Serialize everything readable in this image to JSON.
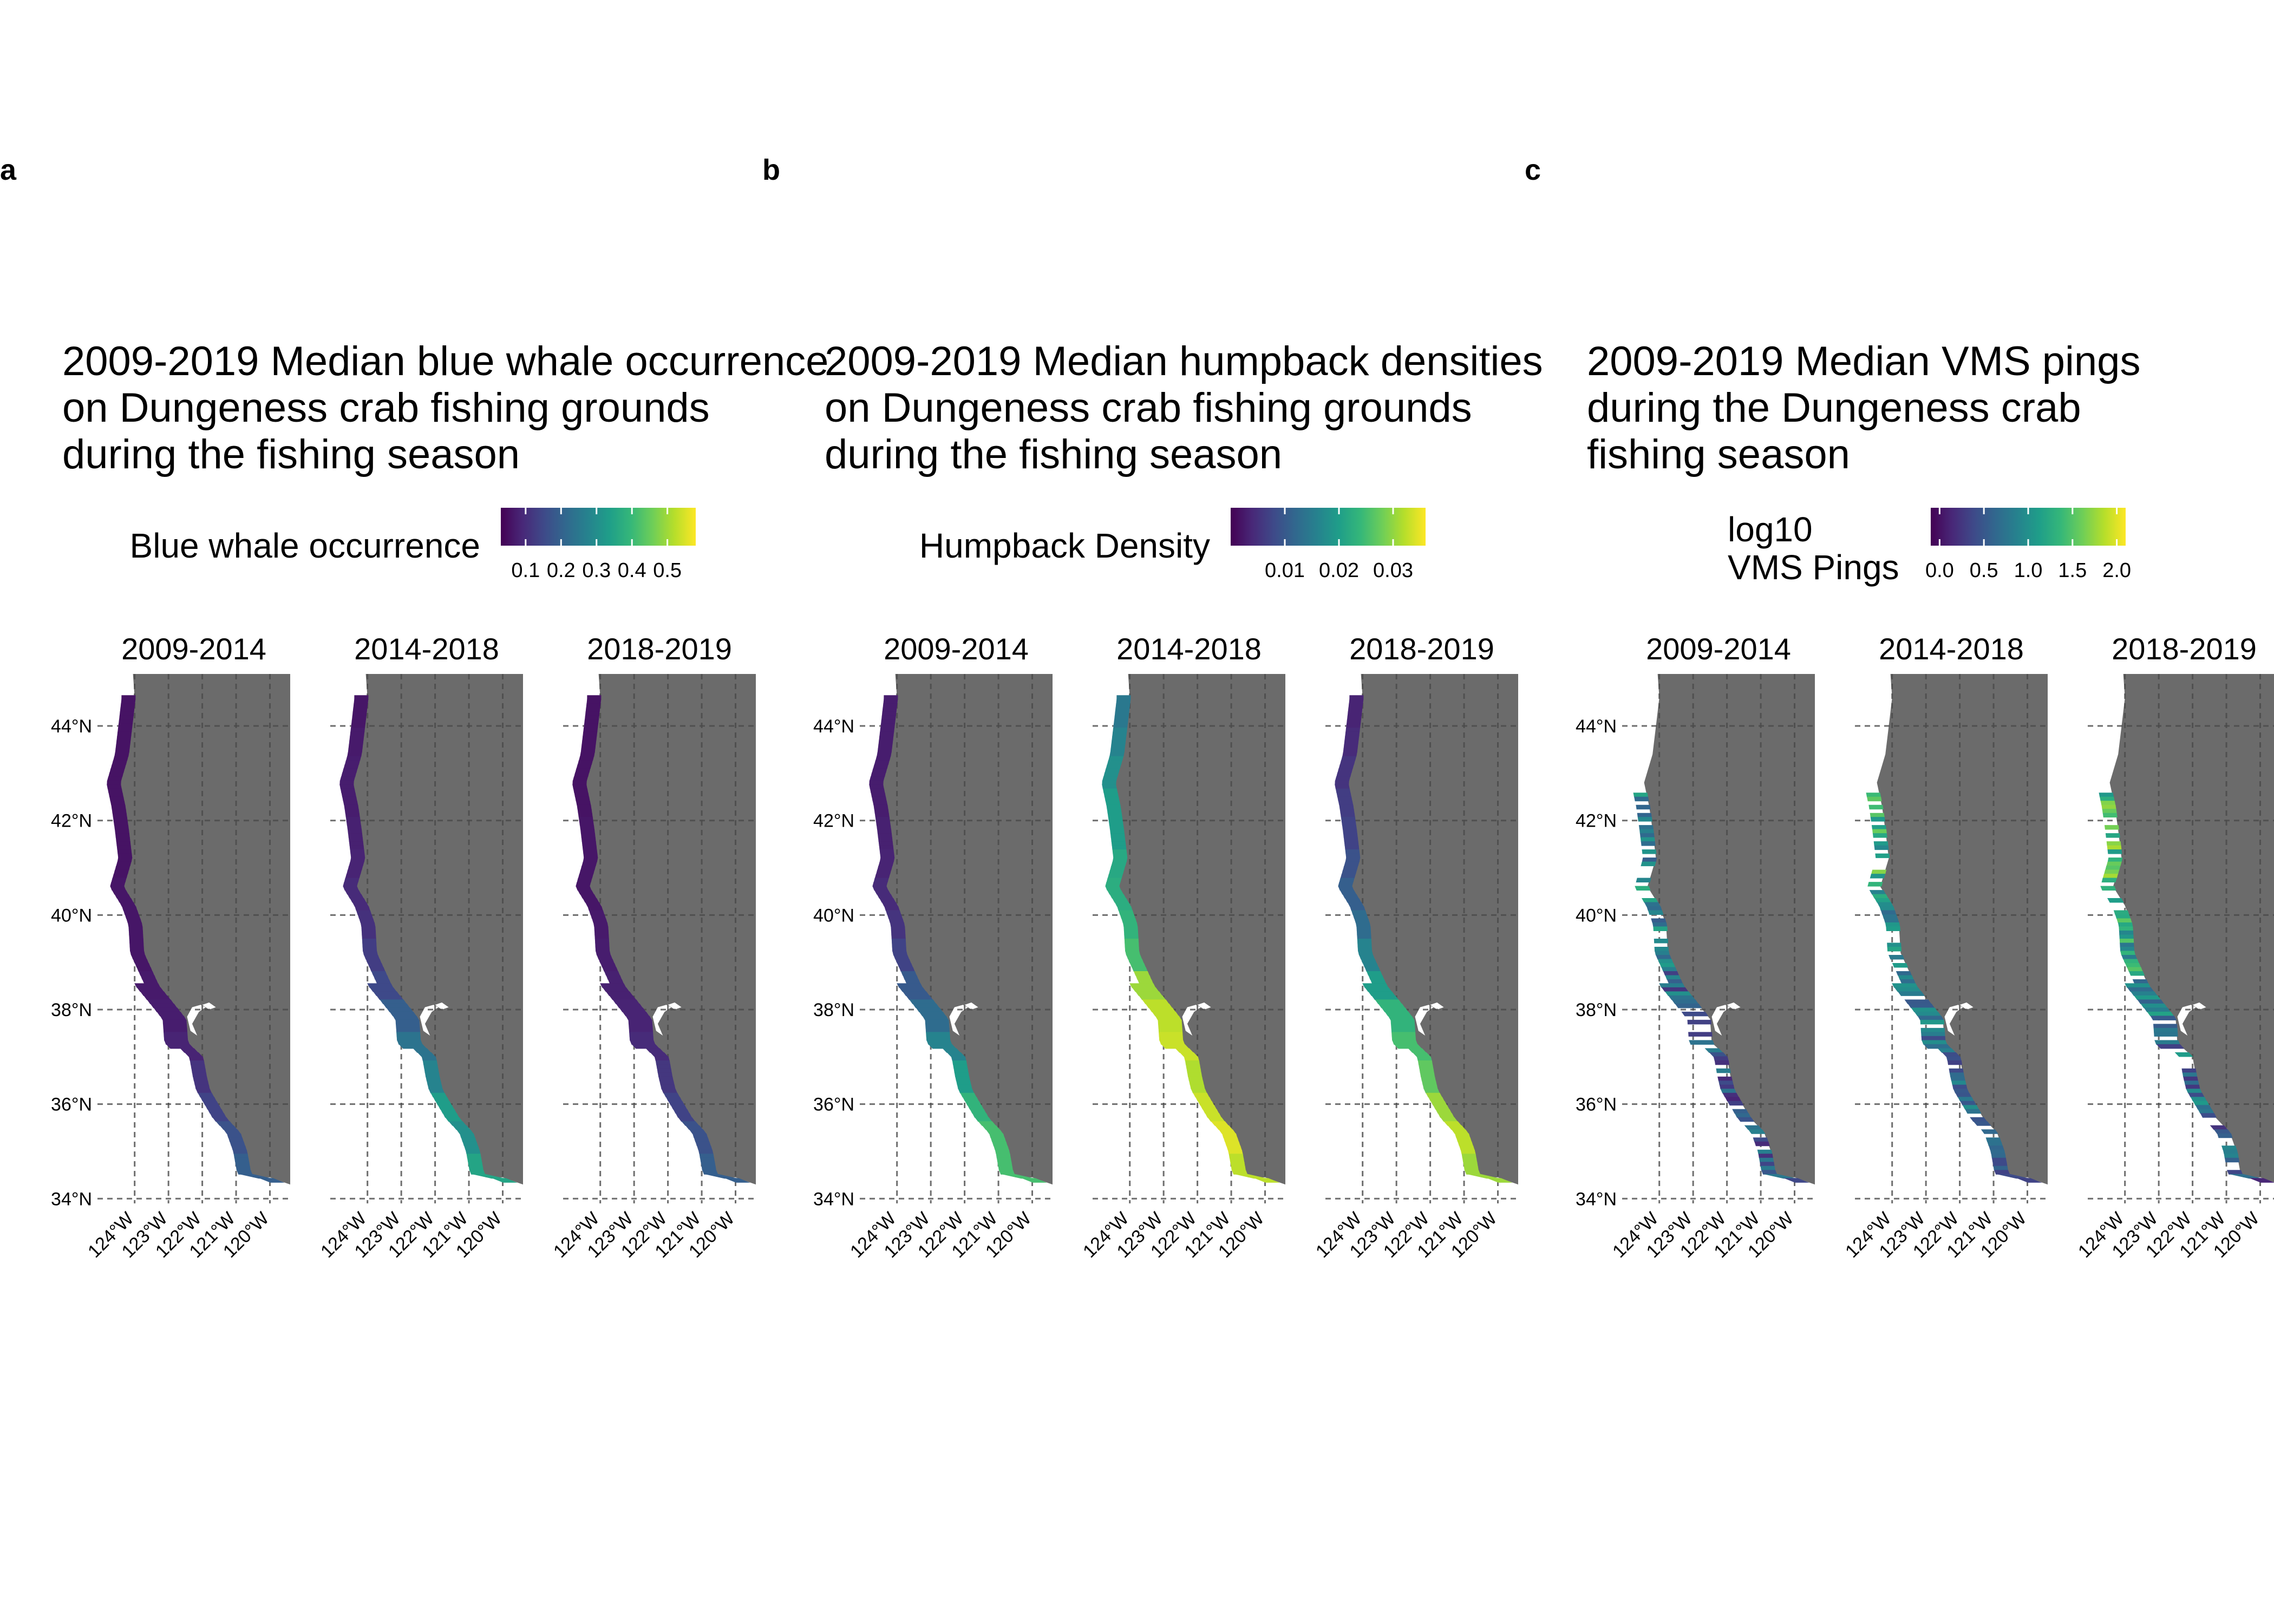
{
  "figure": {
    "panels": [
      {
        "letter": "a",
        "title_lines": [
          "2009-2019 Median blue whale occurrence",
          "on Dungeness crab fishing grounds",
          "during the fishing season"
        ],
        "legend_title_lines": [
          "Blue whale occurrence"
        ],
        "legend_ticks": [
          {
            "label": "0.1",
            "value": 0.1
          },
          {
            "label": "0.2",
            "value": 0.2
          },
          {
            "label": "0.3",
            "value": 0.3
          },
          {
            "label": "0.4",
            "value": 0.4
          },
          {
            "label": "0.5",
            "value": 0.5
          }
        ],
        "legend_range": [
          0.03,
          0.58
        ],
        "facets": [
          {
            "label": "2009-2014",
            "color_profile": [
              0.05,
              0.05,
              0.05,
              0.05,
              0.05,
              0.05,
              0.06,
              0.06,
              0.06,
              0.07,
              0.08,
              0.1,
              0.15,
              0.2,
              0.25,
              0.3
            ],
            "pattern": "continuous"
          },
          {
            "label": "2014-2018",
            "color_profile": [
              0.06,
              0.07,
              0.08,
              0.08,
              0.09,
              0.1,
              0.12,
              0.14,
              0.18,
              0.22,
              0.3,
              0.38,
              0.45,
              0.55,
              0.5,
              0.58
            ],
            "pattern": "continuous"
          },
          {
            "label": "2018-2019",
            "color_profile": [
              0.05,
              0.05,
              0.05,
              0.05,
              0.06,
              0.06,
              0.06,
              0.07,
              0.08,
              0.09,
              0.1,
              0.12,
              0.16,
              0.2,
              0.25,
              0.3
            ],
            "pattern": "continuous"
          }
        ]
      },
      {
        "letter": "b",
        "title_lines": [
          "2009-2019 Median humpback densities",
          "on Dungeness crab fishing grounds",
          "during the fishing season"
        ],
        "legend_title_lines": [
          "Humpback Density"
        ],
        "legend_ticks": [
          {
            "label": "0.01",
            "value": 0.01
          },
          {
            "label": "0.02",
            "value": 0.02
          },
          {
            "label": "0.03",
            "value": 0.03
          }
        ],
        "legend_range": [
          0.0,
          0.036
        ],
        "facets": [
          {
            "label": "2009-2014",
            "color_profile": [
              0.08,
              0.08,
              0.08,
              0.08,
              0.09,
              0.1,
              0.12,
              0.15,
              0.2,
              0.28,
              0.35,
              0.45,
              0.55,
              0.65,
              0.7,
              0.7
            ],
            "pattern": "continuous"
          },
          {
            "label": "2014-2018",
            "color_profile": [
              0.4,
              0.45,
              0.5,
              0.55,
              0.55,
              0.6,
              0.62,
              0.65,
              0.7,
              0.85,
              0.9,
              0.92,
              0.88,
              0.92,
              0.95,
              0.9
            ],
            "pattern": "continuous"
          },
          {
            "label": "2018-2019",
            "color_profile": [
              0.1,
              0.12,
              0.15,
              0.18,
              0.2,
              0.25,
              0.3,
              0.35,
              0.45,
              0.55,
              0.65,
              0.7,
              0.75,
              0.85,
              0.9,
              0.85
            ],
            "pattern": "continuous"
          }
        ]
      },
      {
        "letter": "c",
        "title_lines": [
          "2009-2019 Median VMS pings",
          "during the Dungeness crab",
          "fishing season"
        ],
        "legend_title_lines": [
          "log10",
          "VMS Pings"
        ],
        "legend_ticks": [
          {
            "label": "0.0",
            "value": 0.0
          },
          {
            "label": "0.5",
            "value": 0.5
          },
          {
            "label": "1.0",
            "value": 1.0
          },
          {
            "label": "1.5",
            "value": 1.5
          },
          {
            "label": "2.0",
            "value": 2.0
          }
        ],
        "legend_range": [
          -0.1,
          2.1
        ],
        "facets": [
          {
            "label": "2009-2014",
            "color_profile": [
              0.3,
              0.35,
              0.3,
              0.4,
              0.35,
              0.3,
              0.4,
              0.35,
              0.3,
              0.25,
              0.2,
              0.25,
              0.2,
              0.2,
              0.2,
              0.2
            ],
            "pattern": "sparse"
          },
          {
            "label": "2014-2018",
            "color_profile": [
              0.35,
              0.4,
              0.45,
              0.5,
              0.55,
              0.6,
              0.5,
              0.45,
              0.4,
              0.35,
              0.3,
              0.3,
              0.25,
              0.25,
              0.2,
              0.2
            ],
            "pattern": "sparse"
          },
          {
            "label": "2018-2019",
            "color_profile": [
              0.4,
              0.5,
              0.55,
              0.6,
              0.7,
              0.65,
              0.6,
              0.55,
              0.5,
              0.4,
              0.35,
              0.3,
              0.25,
              0.3,
              0.25,
              0.2
            ],
            "pattern": "sparse"
          }
        ]
      }
    ],
    "lat_ticks": [
      {
        "label": "44°N",
        "value": 44
      },
      {
        "label": "42°N",
        "value": 42
      },
      {
        "label": "40°N",
        "value": 40
      },
      {
        "label": "38°N",
        "value": 38
      },
      {
        "label": "36°N",
        "value": 36
      },
      {
        "label": "34°N",
        "value": 34
      }
    ],
    "lon_ticks": [
      {
        "label": "124°W",
        "value": -124
      },
      {
        "label": "123°W",
        "value": -123
      },
      {
        "label": "122°W",
        "value": -122
      },
      {
        "label": "121°W",
        "value": -121
      },
      {
        "label": "120°W",
        "value": -120
      }
    ],
    "map_extent": {
      "lon": [
        -125.1,
        -119.4
      ],
      "lat": [
        33.9,
        45.1
      ]
    },
    "colors": {
      "land": "#6b6b6b",
      "background": "#ffffff",
      "grid": "#4a4a4a",
      "text": "#000000",
      "viridis": [
        "#440154",
        "#482878",
        "#3e4a89",
        "#31688e",
        "#26828e",
        "#1f9e89",
        "#35b779",
        "#6ece58",
        "#b5de2b",
        "#fde725"
      ]
    }
  }
}
